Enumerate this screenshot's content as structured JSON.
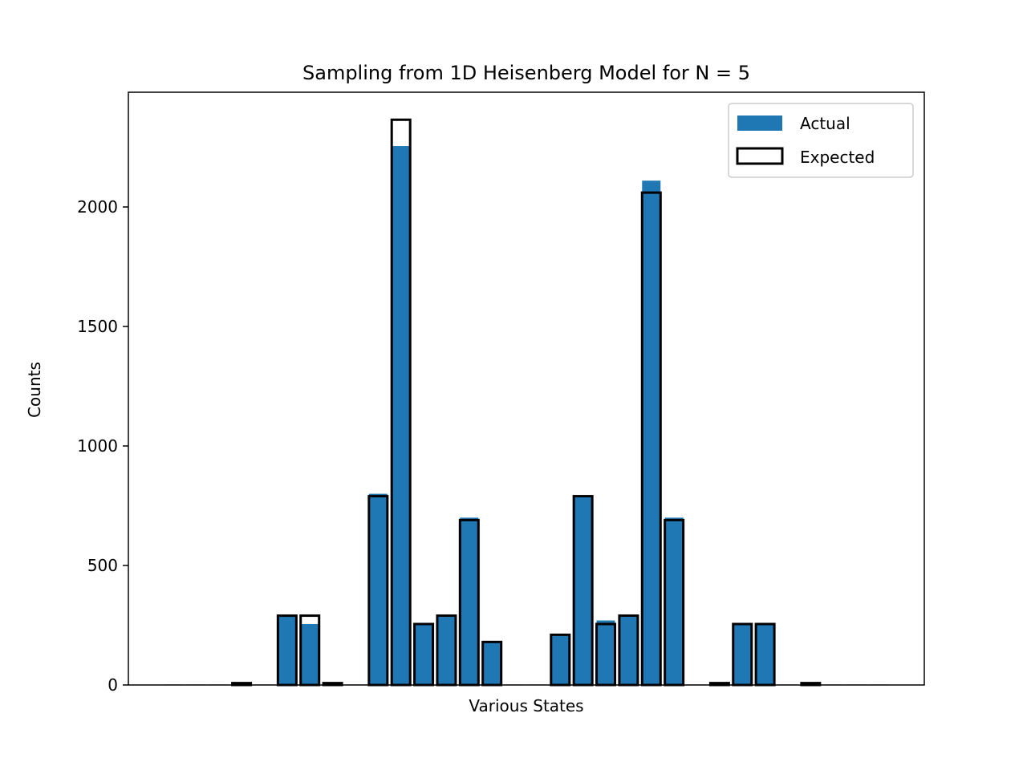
{
  "chart_data": {
    "type": "bar",
    "title": "Sampling from 1D Heisenberg Model for N = 5",
    "xlabel": "Various States",
    "ylabel": "Counts",
    "ylim": [
      0,
      2480
    ],
    "y_ticks": [
      0,
      500,
      1000,
      1500,
      2000
    ],
    "grid": false,
    "legend_position": "top-right",
    "colors": {
      "actual": "#1f77b4",
      "expected_edge": "#000000"
    },
    "series": [
      {
        "name": "Actual",
        "style": "filled",
        "values": [
          2,
          2,
          2,
          8,
          2,
          290,
          255,
          8,
          2,
          800,
          2255,
          250,
          285,
          700,
          180,
          2,
          2,
          205,
          790,
          270,
          285,
          2110,
          700,
          2,
          8,
          250,
          250,
          2,
          8,
          2,
          2,
          2
        ]
      },
      {
        "name": "Expected",
        "style": "outline",
        "values": [
          0,
          0,
          0,
          8,
          0,
          290,
          290,
          8,
          0,
          790,
          2365,
          255,
          290,
          690,
          180,
          0,
          0,
          210,
          790,
          255,
          290,
          2060,
          690,
          0,
          8,
          255,
          255,
          0,
          8,
          0,
          0,
          0
        ]
      }
    ]
  }
}
